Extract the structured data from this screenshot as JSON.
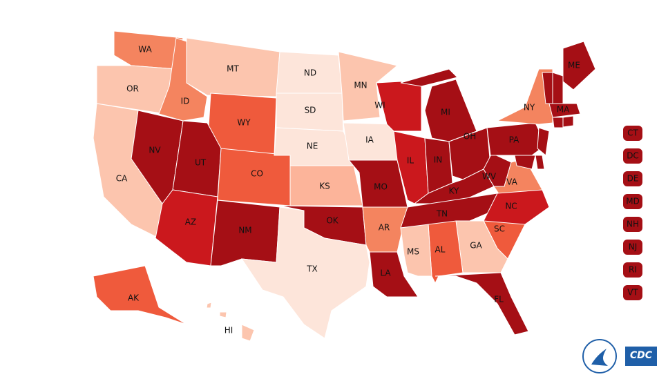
{
  "states": [
    {
      "label": "WA",
      "color": "#f4845f"
    },
    {
      "label": "OR",
      "color": "#fcc5ae"
    },
    {
      "label": "CA",
      "color": "#fcc5ae"
    },
    {
      "label": "NV",
      "color": "#a50f15"
    },
    {
      "label": "ID",
      "color": "#f4845f"
    },
    {
      "label": "MT",
      "color": "#fcc5ae"
    },
    {
      "label": "WY",
      "color": "#ef5a3c"
    },
    {
      "label": "UT",
      "color": "#a50f15"
    },
    {
      "label": "CO",
      "color": "#ef5a3c"
    },
    {
      "label": "AZ",
      "color": "#cb181d"
    },
    {
      "label": "NM",
      "color": "#a50f15"
    },
    {
      "label": "ND",
      "color": "#fde5da"
    },
    {
      "label": "SD",
      "color": "#fde5da"
    },
    {
      "label": "NE",
      "color": "#fde5da"
    },
    {
      "label": "KS",
      "color": "#fcb49a"
    },
    {
      "label": "OK",
      "color": "#a50f15"
    },
    {
      "label": "TX",
      "color": "#fde5da"
    },
    {
      "label": "MN",
      "color": "#fcc5ae"
    },
    {
      "label": "IA",
      "color": "#fde5da"
    },
    {
      "label": "MO",
      "color": "#a50f15"
    },
    {
      "label": "AR",
      "color": "#f4845f"
    },
    {
      "label": "LA",
      "color": "#a50f15"
    },
    {
      "label": "WI",
      "color": "#cb181d"
    },
    {
      "label": "IL",
      "color": "#cb181d"
    },
    {
      "label": "MI",
      "color": "#a50f15"
    },
    {
      "label": "IN",
      "color": "#a50f15"
    },
    {
      "label": "OH",
      "color": "#a50f15"
    },
    {
      "label": "KY",
      "color": "#a50f15"
    },
    {
      "label": "TN",
      "color": "#a50f15"
    },
    {
      "label": "WV",
      "color": "#a50f15"
    },
    {
      "label": "VA",
      "color": "#f4845f"
    },
    {
      "label": "NC",
      "color": "#cb181d"
    },
    {
      "label": "SC",
      "color": "#ef5a3c"
    },
    {
      "label": "GA",
      "color": "#fcc5ae"
    },
    {
      "label": "AL",
      "color": "#ef5a3c"
    },
    {
      "label": "MS",
      "color": "#fcc5ae"
    },
    {
      "label": "FL",
      "color": "#a50f15"
    },
    {
      "label": "PA",
      "color": "#a50f15"
    },
    {
      "label": "NY",
      "color": "#f4845f"
    },
    {
      "label": "ME",
      "color": "#a50f15"
    },
    {
      "label": "MA",
      "color": "#a50f15"
    },
    {
      "label": "AK",
      "color": "#ef5a3c"
    },
    {
      "label": "HI",
      "color": "#fcc5ae"
    }
  ],
  "small_states": [
    {
      "label": "CT",
      "color": "#a50f15"
    },
    {
      "label": "DC",
      "color": "#a50f15"
    },
    {
      "label": "DE",
      "color": "#a50f15"
    },
    {
      "label": "MD",
      "color": "#a50f15"
    },
    {
      "label": "NH",
      "color": "#a50f15"
    },
    {
      "label": "NJ",
      "color": "#a50f15"
    },
    {
      "label": "RI",
      "color": "#a50f15"
    },
    {
      "label": "VT",
      "color": "#a50f15"
    }
  ],
  "logo": {
    "text": "CDC"
  }
}
